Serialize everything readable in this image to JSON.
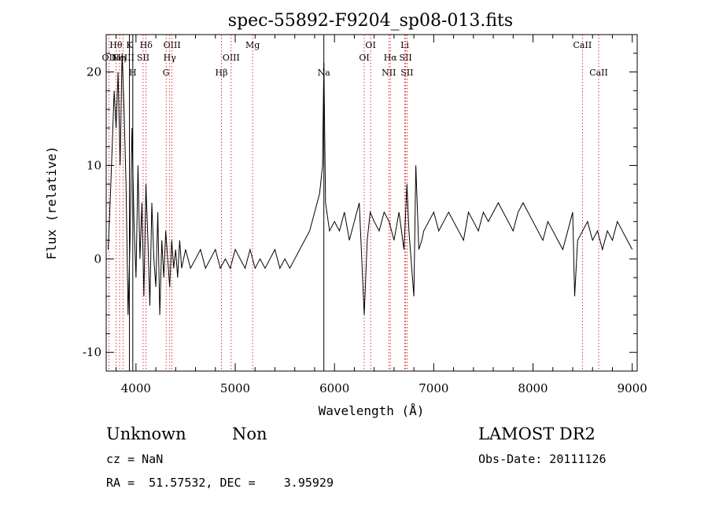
{
  "chart_data": {
    "type": "line",
    "title": "spec-55892-F9204_sp08-013.fits",
    "xlabel": "Wavelength (Å)",
    "ylabel": "Flux (relative)",
    "xlim": [
      3700,
      9050
    ],
    "ylim": [
      -12,
      24
    ],
    "xticks": [
      4000,
      5000,
      6000,
      7000,
      8000,
      9000
    ],
    "yticks": [
      -10,
      0,
      10,
      20
    ],
    "minor_x_step": 200,
    "minor_y_step": 2,
    "grid": false,
    "colors": {
      "spectrum": "#000000",
      "emission_lines": "#cc0000",
      "absorption_lines": "#000000"
    },
    "line_markers": [
      {
        "label": "OII",
        "wl": 3727,
        "row": 2,
        "style": "dotted"
      },
      {
        "label": "Hθ",
        "wl": 3798,
        "row": 1,
        "style": "dotted"
      },
      {
        "label": "Hη",
        "wl": 3835,
        "row": 2,
        "style": "dotted"
      },
      {
        "label": "NeIII",
        "wl": 3869,
        "row": 2,
        "style": "dotted"
      },
      {
        "label": "K",
        "wl": 3934,
        "row": 1,
        "style": "solid"
      },
      {
        "label": "H",
        "wl": 3968,
        "row": 3,
        "style": "solid"
      },
      {
        "label": "SII",
        "wl": 4072,
        "row": 2,
        "style": "dotted"
      },
      {
        "label": "Hδ",
        "wl": 4102,
        "row": 1,
        "style": "dotted"
      },
      {
        "label": "G",
        "wl": 4304,
        "row": 3,
        "style": "dotted"
      },
      {
        "label": "Hγ",
        "wl": 4340,
        "row": 2,
        "style": "dotted"
      },
      {
        "label": "OIII",
        "wl": 4363,
        "row": 1,
        "style": "dotted"
      },
      {
        "label": "Hβ",
        "wl": 4861,
        "row": 3,
        "style": "dotted"
      },
      {
        "label": "OIII",
        "wl": 4959,
        "row": 2,
        "style": "dotted"
      },
      {
        "label": "Mg",
        "wl": 5175,
        "row": 1,
        "style": "dotted"
      },
      {
        "label": "Na",
        "wl": 5893,
        "row": 3,
        "style": "solid"
      },
      {
        "label": "OI",
        "wl": 6300,
        "row": 2,
        "style": "dotted"
      },
      {
        "label": "OI",
        "wl": 6364,
        "row": 1,
        "style": "dotted"
      },
      {
        "label": "NII",
        "wl": 6548,
        "row": 3,
        "style": "dotted"
      },
      {
        "label": "Hα",
        "wl": 6563,
        "row": 2,
        "style": "dotted"
      },
      {
        "label": "Li",
        "wl": 6708,
        "row": 1,
        "style": "dotted"
      },
      {
        "label": "SII",
        "wl": 6717,
        "row": 2,
        "style": "dotted"
      },
      {
        "label": "SII",
        "wl": 6731,
        "row": 3,
        "style": "dotted"
      },
      {
        "label": "CaII",
        "wl": 8498,
        "row": 1,
        "style": "dotted"
      },
      {
        "label": "CaII",
        "wl": 8662,
        "row": 3,
        "style": "dotted"
      }
    ],
    "series": [
      {
        "x": [
          3720,
          3740,
          3760,
          3780,
          3800,
          3820,
          3840,
          3860,
          3880,
          3900,
          3920,
          3940,
          3960,
          3980,
          4000,
          4020,
          4040,
          4060,
          4080,
          4100,
          4120,
          4140,
          4160,
          4180,
          4200,
          4220,
          4240,
          4260,
          4280,
          4300,
          4320,
          4340,
          4360,
          4380,
          4400,
          4420,
          4440,
          4460,
          4480,
          4500,
          4550,
          4600,
          4650,
          4700,
          4750,
          4800,
          4850,
          4900,
          4950,
          5000,
          5050,
          5100,
          5150,
          5200,
          5250,
          5300,
          5350,
          5400,
          5450,
          5500,
          5550,
          5600,
          5650,
          5700,
          5750,
          5800,
          5850,
          5880,
          5893,
          5910,
          5950,
          6000,
          6050,
          6100,
          6150,
          6200,
          6250,
          6300,
          6330,
          6360,
          6400,
          6450,
          6500,
          6550,
          6600,
          6650,
          6700,
          6730,
          6750,
          6800,
          6820,
          6850,
          6880,
          6900,
          6950,
          7000,
          7050,
          7100,
          7150,
          7200,
          7250,
          7300,
          7350,
          7400,
          7450,
          7500,
          7550,
          7600,
          7650,
          7700,
          7750,
          7800,
          7850,
          7900,
          7950,
          8000,
          8050,
          8100,
          8150,
          8200,
          8250,
          8300,
          8350,
          8400,
          8420,
          8450,
          8500,
          8550,
          8600,
          8650,
          8700,
          8750,
          8800,
          8850,
          8900,
          8950,
          9000
        ],
        "y": [
          1,
          6,
          12,
          18,
          14,
          20,
          10,
          22,
          16,
          8,
          -6,
          2,
          14,
          4,
          -2,
          10,
          0,
          6,
          -4,
          8,
          2,
          -5,
          6,
          0,
          -3,
          5,
          -6,
          2,
          -2,
          3,
          0,
          -3,
          2,
          -1,
          1,
          -2,
          2,
          -1,
          0,
          1,
          -1,
          0,
          1,
          -1,
          0,
          1,
          -1,
          0,
          -1,
          1,
          0,
          -1,
          1,
          -1,
          0,
          -1,
          0,
          1,
          -1,
          0,
          -1,
          0,
          1,
          2,
          3,
          5,
          7,
          10,
          21,
          6,
          3,
          4,
          3,
          5,
          2,
          4,
          6,
          -6,
          2,
          5,
          4,
          3,
          5,
          4,
          2,
          5,
          1,
          8,
          3,
          -4,
          10,
          1,
          2,
          3,
          4,
          5,
          3,
          4,
          5,
          4,
          3,
          2,
          5,
          4,
          3,
          5,
          4,
          5,
          6,
          5,
          4,
          3,
          5,
          6,
          5,
          4,
          3,
          2,
          4,
          3,
          2,
          1,
          3,
          5,
          -4,
          2,
          3,
          4,
          2,
          3,
          1,
          3,
          2,
          4,
          3,
          2,
          1
        ]
      }
    ]
  },
  "footer": {
    "object_type": "Unknown",
    "subclass": "Non",
    "survey": "LAMOST DR2",
    "cz_text": "cz = NaN",
    "obs_date_text": "Obs-Date: 20111126",
    "coords_text": "RA =  51.57532, DEC =    3.95929"
  }
}
